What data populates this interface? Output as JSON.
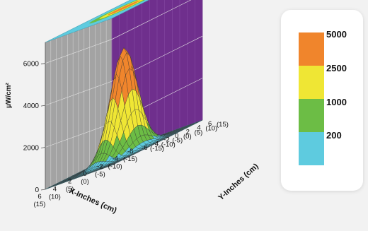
{
  "chart_data": {
    "type": "surface3d",
    "zlabel": "µW/cm²",
    "xlabel": "X-Inches (cm)",
    "ylabel": "Y-Inches (cm)",
    "z_ticks": [
      {
        "v": 0,
        "label": "0"
      },
      {
        "v": 2000,
        "label": "2000"
      },
      {
        "v": 4000,
        "label": "4000"
      },
      {
        "v": 6000,
        "label": "6000"
      }
    ],
    "zlim": [
      0,
      7000
    ],
    "x_ticks": [
      {
        "v": 6,
        "in": "6",
        "cm": "(15)"
      },
      {
        "v": 4,
        "in": "4",
        "cm": "(10)"
      },
      {
        "v": 2,
        "in": "2",
        "cm": "(5)"
      },
      {
        "v": 0,
        "in": "0",
        "cm": "(0)"
      },
      {
        "v": -2,
        "in": "-2",
        "cm": "(-5)"
      },
      {
        "v": -4,
        "in": "-4",
        "cm": "(-10)"
      },
      {
        "v": -6,
        "in": "-6",
        "cm": "(-15)"
      }
    ],
    "y_ticks": [
      {
        "v": 6,
        "in": "6",
        "cm": "(15)"
      },
      {
        "v": 4,
        "in": "4",
        "cm": "(10)"
      },
      {
        "v": 2,
        "in": "2",
        "cm": "(5)"
      },
      {
        "v": 0,
        "in": "0",
        "cm": "(0)"
      },
      {
        "v": -2,
        "in": "-2",
        "cm": "(-5)"
      },
      {
        "v": -4,
        "in": "-4",
        "cm": "(-10)"
      },
      {
        "v": -6,
        "in": "-6",
        "cm": "(-15)"
      }
    ],
    "peak": 5100,
    "sigma_in": 1.45,
    "bands": [
      {
        "label": "200",
        "min": 0,
        "max": 200,
        "color": "#5ecbdf"
      },
      {
        "label": "1000",
        "min": 200,
        "max": 1000,
        "color": "#6cbd45"
      },
      {
        "label": "2500",
        "min": 1000,
        "max": 2500,
        "color": "#efe634"
      },
      {
        "label": "5000",
        "min": 2500,
        "max": 5000,
        "color": "#f0852c"
      }
    ],
    "colors": {
      "left_wall": "#a3a3a3",
      "back_wall": "#6f2f8d",
      "top_plane": "#5ecbdf",
      "grid_line": "#333333"
    }
  },
  "legend": {
    "items": [
      {
        "label": "5000",
        "color": "#f0852c"
      },
      {
        "label": "2500",
        "color": "#efe634"
      },
      {
        "label": "1000",
        "color": "#6cbd45"
      },
      {
        "label": "200",
        "color": "#5ecbdf"
      }
    ]
  }
}
